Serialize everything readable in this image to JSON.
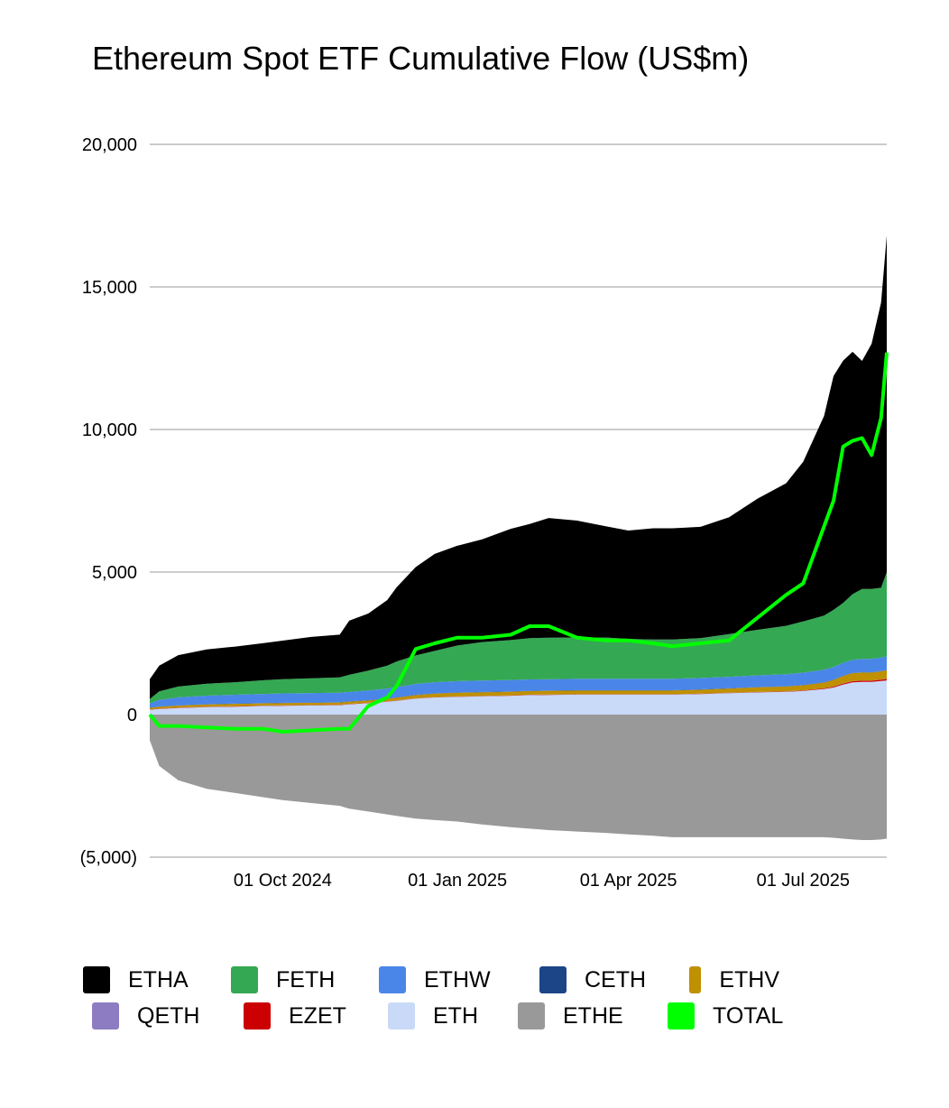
{
  "title": "Ethereum Spot ETF Cumulative Flow (US$m)",
  "chart_data": {
    "type": "area",
    "stacked": true,
    "title": "Ethereum Spot ETF Cumulative Flow (US$m)",
    "xlabel": "",
    "ylabel": "",
    "ylim": [
      -5000,
      20000
    ],
    "yticks": [
      20000,
      15000,
      10000,
      5000,
      0,
      -5000
    ],
    "ytick_labels": [
      "20,000",
      "15,000",
      "10,000",
      "5,000",
      "0",
      "(5,000)"
    ],
    "xtick_labels": [
      "01 Oct 2024",
      "01 Jan 2025",
      "01 Apr 2025",
      "01 Jul 2025"
    ],
    "xtick_positions": [
      70,
      162,
      252,
      344
    ],
    "xlim": [
      0,
      388
    ],
    "grid": true,
    "legend_position": "bottom",
    "x": [
      0,
      5,
      15,
      30,
      45,
      60,
      70,
      85,
      100,
      105,
      115,
      125,
      130,
      140,
      150,
      162,
      175,
      190,
      200,
      210,
      225,
      240,
      252,
      265,
      275,
      290,
      305,
      320,
      335,
      344,
      355,
      360,
      365,
      370,
      375,
      380,
      385,
      388
    ],
    "series": [
      {
        "name": "ETHE",
        "color": "#999999",
        "values": [
          -900,
          -1800,
          -2300,
          -2600,
          -2750,
          -2900,
          -3000,
          -3100,
          -3200,
          -3300,
          -3400,
          -3500,
          -3550,
          -3650,
          -3700,
          -3750,
          -3850,
          -3950,
          -4000,
          -4050,
          -4100,
          -4150,
          -4200,
          -4250,
          -4300,
          -4300,
          -4300,
          -4300,
          -4300,
          -4300,
          -4300,
          -4320,
          -4350,
          -4380,
          -4400,
          -4400,
          -4380,
          -4350
        ]
      },
      {
        "name": "ETH",
        "color": "#c9daf8",
        "values": [
          170,
          200,
          230,
          260,
          280,
          300,
          310,
          320,
          330,
          360,
          400,
          450,
          480,
          560,
          600,
          620,
          640,
          660,
          680,
          690,
          700,
          700,
          700,
          700,
          700,
          720,
          750,
          780,
          800,
          830,
          900,
          950,
          1050,
          1130,
          1150,
          1150,
          1180,
          1200
        ]
      },
      {
        "name": "EZET",
        "color": "#cc0000",
        "values": [
          10,
          10,
          10,
          10,
          10,
          10,
          10,
          10,
          10,
          10,
          10,
          10,
          10,
          10,
          10,
          10,
          10,
          10,
          10,
          10,
          10,
          10,
          10,
          10,
          10,
          10,
          10,
          10,
          10,
          15,
          20,
          30,
          40,
          40,
          40,
          40,
          45,
          50
        ]
      },
      {
        "name": "QETH",
        "color": "#8e7cc3",
        "values": [
          5,
          5,
          5,
          5,
          5,
          5,
          5,
          5,
          5,
          5,
          5,
          5,
          5,
          5,
          5,
          5,
          5,
          5,
          5,
          5,
          5,
          5,
          5,
          5,
          5,
          5,
          5,
          5,
          5,
          5,
          5,
          5,
          5,
          5,
          5,
          5,
          5,
          5
        ]
      },
      {
        "name": "ETHV",
        "color": "#bf9000",
        "values": [
          50,
          60,
          70,
          80,
          80,
          80,
          80,
          80,
          80,
          80,
          80,
          90,
          100,
          110,
          120,
          130,
          130,
          130,
          130,
          130,
          130,
          130,
          130,
          130,
          130,
          140,
          150,
          160,
          170,
          180,
          200,
          230,
          260,
          280,
          280,
          280,
          290,
          300
        ]
      },
      {
        "name": "CETH",
        "color": "#1c4587",
        "values": [
          10,
          10,
          10,
          10,
          10,
          10,
          10,
          10,
          10,
          10,
          10,
          10,
          10,
          10,
          10,
          10,
          10,
          10,
          10,
          10,
          10,
          10,
          10,
          10,
          10,
          10,
          10,
          10,
          10,
          10,
          10,
          10,
          10,
          10,
          10,
          10,
          10,
          10
        ]
      },
      {
        "name": "ETHW",
        "color": "#4a86e8",
        "values": [
          150,
          230,
          280,
          300,
          310,
          320,
          330,
          330,
          330,
          330,
          340,
          350,
          360,
          380,
          390,
          400,
          400,
          400,
          400,
          400,
          400,
          400,
          400,
          400,
          400,
          400,
          400,
          410,
          420,
          430,
          440,
          450,
          450,
          460,
          470,
          470,
          470,
          480
        ]
      },
      {
        "name": "FETH",
        "color": "#34a853",
        "values": [
          150,
          300,
          380,
          420,
          440,
          480,
          500,
          520,
          540,
          600,
          700,
          800,
          900,
          1000,
          1100,
          1250,
          1350,
          1400,
          1450,
          1450,
          1450,
          1450,
          1400,
          1380,
          1380,
          1400,
          1500,
          1600,
          1700,
          1800,
          1900,
          2000,
          2100,
          2300,
          2450,
          2450,
          2450,
          2950
        ]
      },
      {
        "name": "ETHA",
        "color": "#000000",
        "values": [
          700,
          900,
          1100,
          1200,
          1250,
          1300,
          1350,
          1450,
          1500,
          1900,
          2000,
          2300,
          2600,
          3100,
          3400,
          3500,
          3600,
          3900,
          4000,
          4200,
          4100,
          3900,
          3800,
          3900,
          3900,
          3900,
          4100,
          4600,
          5000,
          5600,
          7000,
          8200,
          8500,
          8500,
          8000,
          8600,
          10000,
          11800
        ]
      },
      {
        "name": "TOTAL",
        "color": "#00ff00",
        "type": "line",
        "values": [
          0,
          -400,
          -400,
          -450,
          -500,
          -500,
          -600,
          -550,
          -500,
          -500,
          300,
          600,
          1000,
          2300,
          2500,
          2700,
          2700,
          2800,
          3100,
          3100,
          2700,
          2600,
          2600,
          2500,
          2400,
          2500,
          2600,
          3400,
          4200,
          4600,
          6600,
          7500,
          9400,
          9600,
          9700,
          9100,
          10400,
          12700
        ]
      }
    ]
  }
}
